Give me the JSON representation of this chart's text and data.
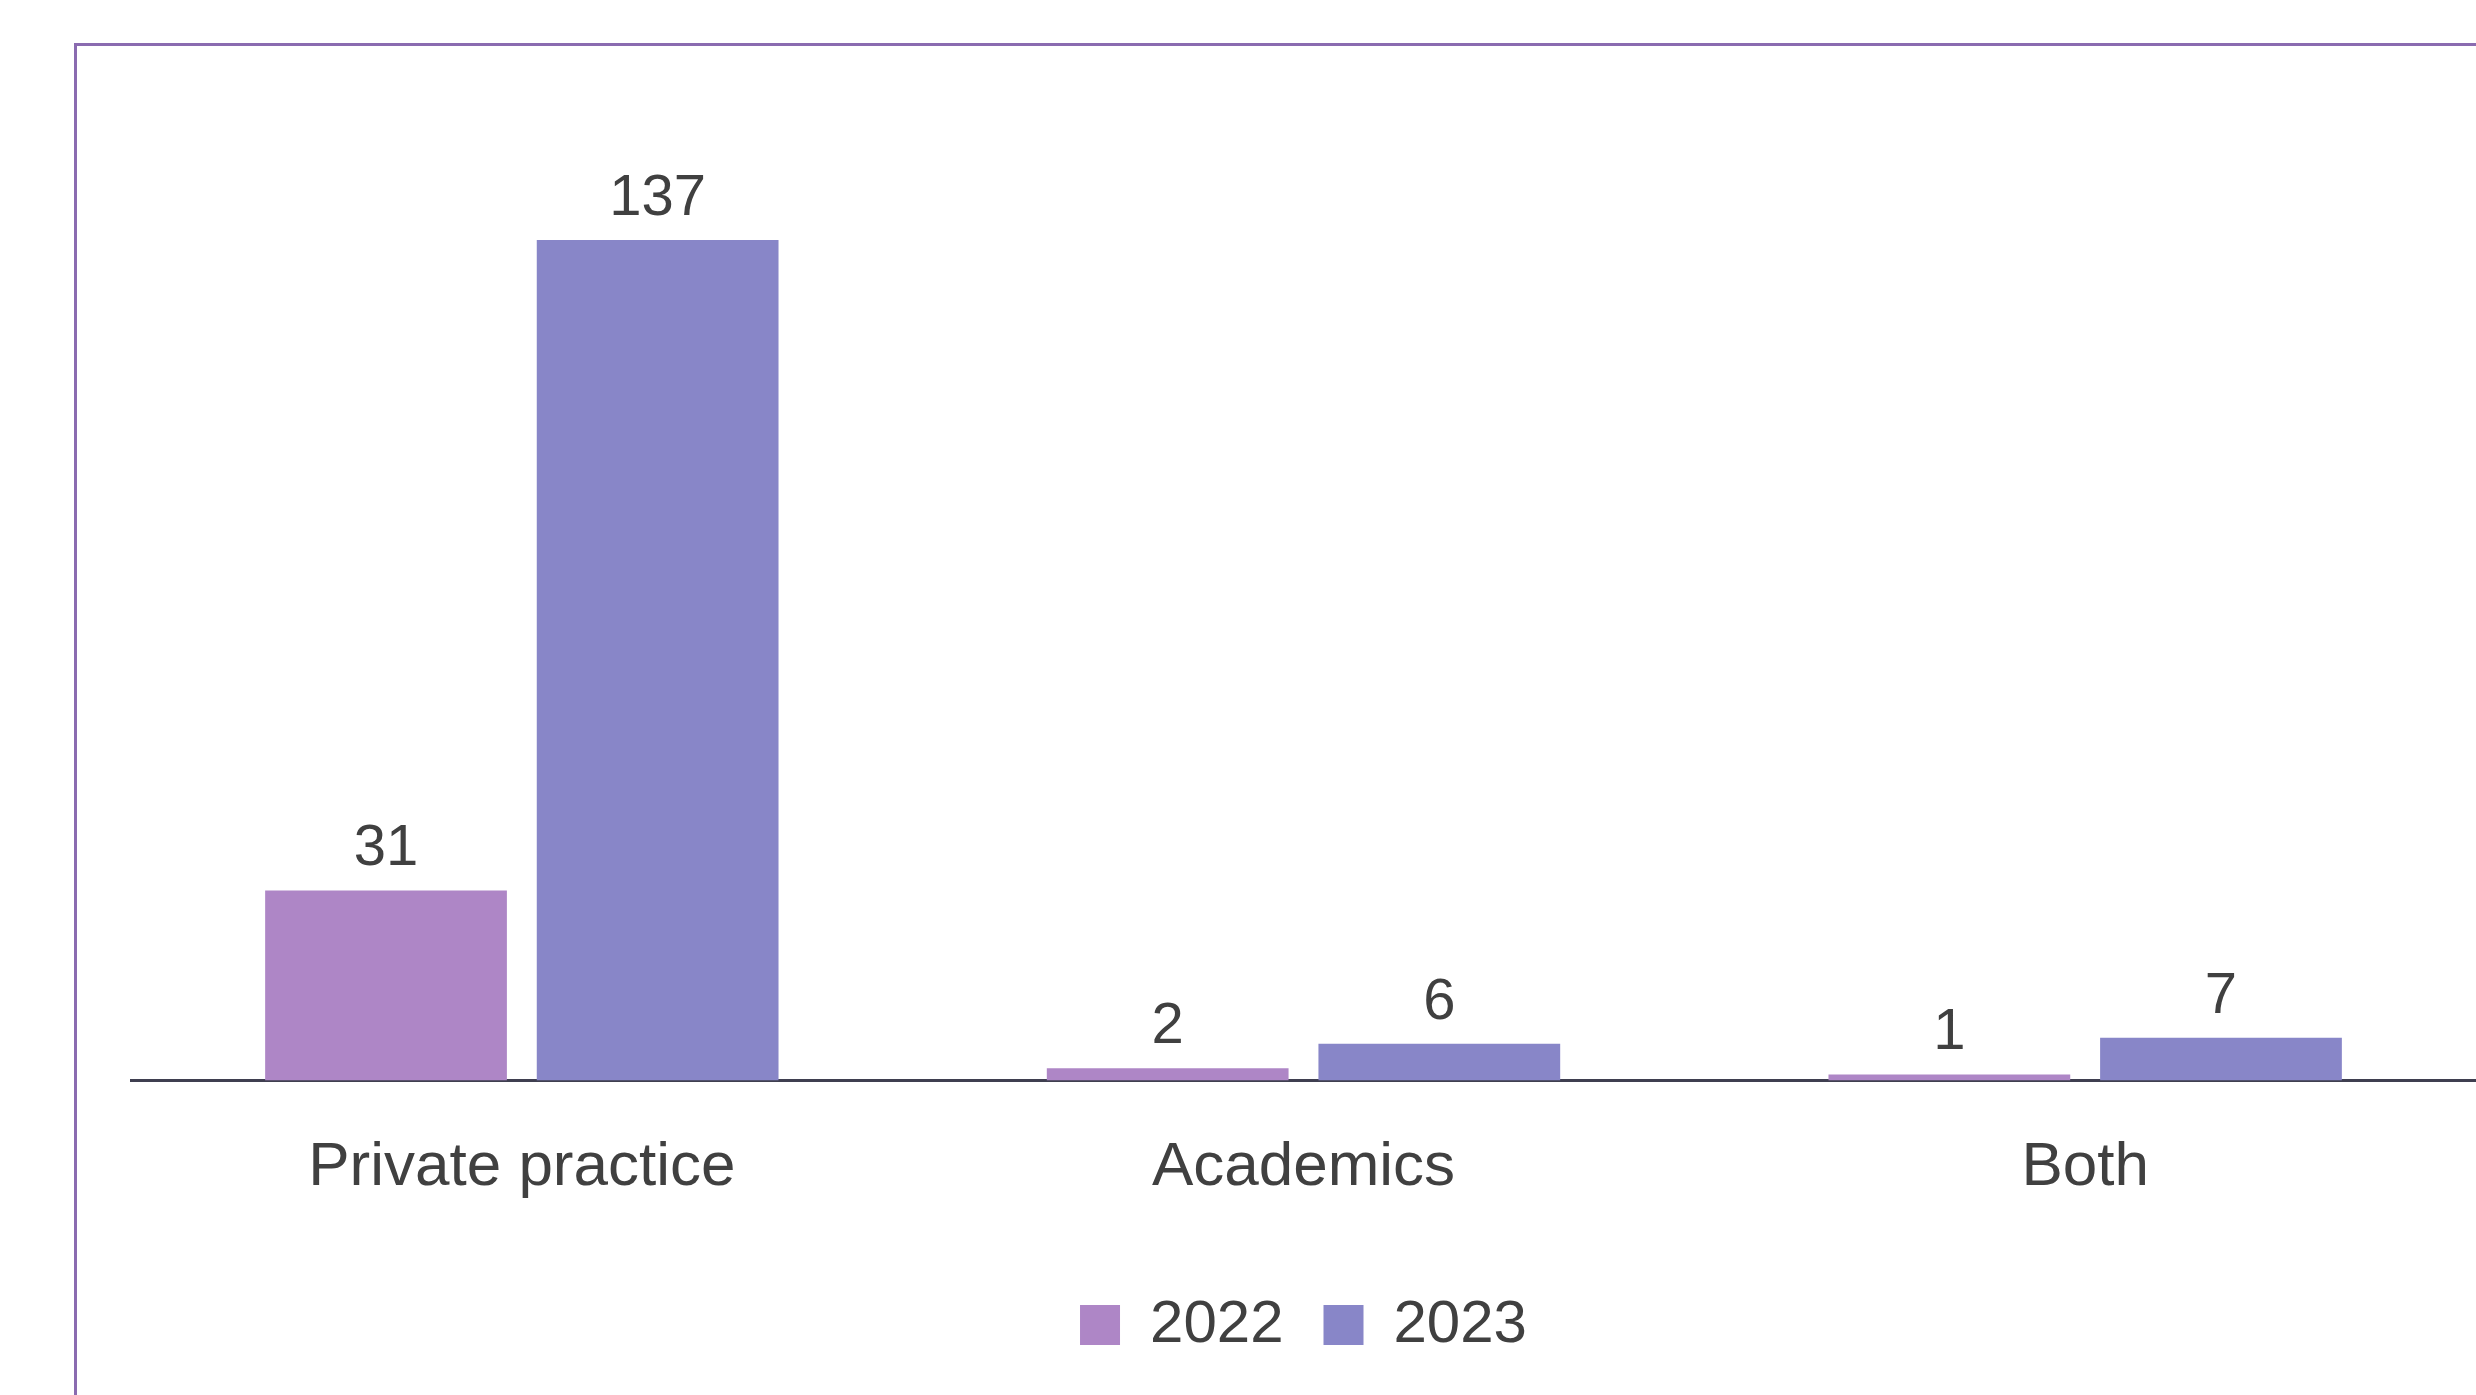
{
  "chart_data": {
    "type": "bar",
    "categories": [
      "Private practice",
      "Academics",
      "Both"
    ],
    "series": [
      {
        "name": "2022",
        "color": "#ae86c6",
        "values": [
          31,
          2,
          1
        ]
      },
      {
        "name": "2023",
        "color": "#8886c8",
        "values": [
          137,
          6,
          7
        ]
      }
    ],
    "data_labels": true,
    "legend": "bottom",
    "grid": false
  }
}
